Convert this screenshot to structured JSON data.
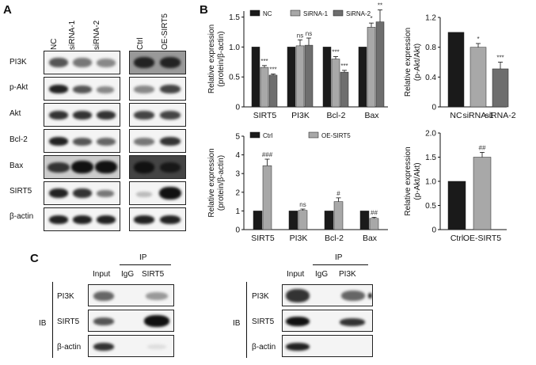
{
  "panelA": {
    "letter": "A",
    "left_lanes": [
      "NC",
      "siRNA-1",
      "siRNA-2"
    ],
    "right_lanes": [
      "Ctrl",
      "OE-SIRT5"
    ],
    "rows": [
      "PI3K",
      "p-Akt",
      "Akt",
      "Bcl-2",
      "Bax",
      "SIRT5",
      "β-actin"
    ]
  },
  "panelB": {
    "letter": "B",
    "chart_data": [
      {
        "type": "bar",
        "categories": [
          "SIRT5",
          "PI3K",
          "Bcl-2",
          "Bax"
        ],
        "series": [
          {
            "name": "NC",
            "values": [
              1.0,
              1.0,
              1.0,
              1.0
            ],
            "errors": [
              0,
              0,
              0,
              0
            ],
            "color": "#1a1a1a"
          },
          {
            "name": "SiRNA-1",
            "values": [
              0.66,
              1.02,
              0.8,
              1.33
            ],
            "errors": [
              0.03,
              0.1,
              0.04,
              0.07
            ],
            "color": "#a8a8a8"
          },
          {
            "name": "SiRNA-2",
            "values": [
              0.53,
              1.03,
              0.58,
              1.42
            ],
            "errors": [
              0.02,
              0.12,
              0.03,
              0.2
            ],
            "color": "#6e6e6e"
          }
        ],
        "annotations": [
          [
            "",
            "***",
            "***"
          ],
          [
            "",
            "ns",
            "ns"
          ],
          [
            "",
            "***",
            "***"
          ],
          [
            "",
            "*",
            "**"
          ]
        ],
        "ylabel": "Relative expression\n(protein/β-actin)",
        "ylim": [
          0,
          1.6
        ],
        "yticks": [
          "0",
          "0.5",
          "1.0",
          "1.5"
        ]
      },
      {
        "type": "bar",
        "categories": [
          "NC",
          "siRNA-1",
          "siRNA-2"
        ],
        "values": [
          1.0,
          0.8,
          0.51
        ],
        "errors": [
          0,
          0.05,
          0.09
        ],
        "colors": [
          "#1a1a1a",
          "#a8a8a8",
          "#6e6e6e"
        ],
        "annotations": [
          "",
          "*",
          "***"
        ],
        "ylabel": "Relative expression\n(p-Akt/Akt)",
        "ylim": [
          0,
          1.2
        ],
        "yticks": [
          "0",
          "0.4",
          "0.8",
          "1.2"
        ]
      },
      {
        "type": "bar",
        "categories": [
          "SIRT5",
          "PI3K",
          "Bcl-2",
          "Bax"
        ],
        "series": [
          {
            "name": "Ctrl",
            "values": [
              1.0,
              1.0,
              1.0,
              1.0
            ],
            "errors": [
              0,
              0,
              0,
              0
            ],
            "color": "#1a1a1a"
          },
          {
            "name": "OE-SIRT5",
            "values": [
              3.42,
              1.03,
              1.5,
              0.6
            ],
            "errors": [
              0.35,
              0.07,
              0.2,
              0.06
            ],
            "color": "#a8a8a8"
          }
        ],
        "annotations": [
          [
            "",
            "###"
          ],
          [
            "",
            "ns"
          ],
          [
            "",
            "#"
          ],
          [
            "",
            "##"
          ]
        ],
        "ylabel": "Relative expression\n(protein/β-actin)",
        "ylim": [
          0,
          5
        ],
        "yticks": [
          "0",
          "1",
          "2",
          "3",
          "4",
          "5"
        ]
      },
      {
        "type": "bar",
        "categories": [
          "Ctrl",
          "OE-SIRT5"
        ],
        "values": [
          1.0,
          1.5
        ],
        "errors": [
          0,
          0.1
        ],
        "colors": [
          "#1a1a1a",
          "#a8a8a8"
        ],
        "annotations": [
          "",
          "##"
        ],
        "ylabel": "Relative expression\n(p-Akt/Akt)",
        "ylim": [
          0,
          2.0
        ],
        "yticks": [
          "0",
          "0.5",
          "1.0",
          "1.5",
          "2.0"
        ]
      }
    ]
  },
  "panelC": {
    "letter": "C",
    "left": {
      "input": "Input",
      "ip": "IP",
      "lanes": [
        "IgG",
        "SIRT5"
      ],
      "ib": "IB",
      "rows": [
        "PI3K",
        "SIRT5",
        "β-actin"
      ]
    },
    "right": {
      "input": "Input",
      "ip": "IP",
      "lanes": [
        "IgG",
        "PI3K"
      ],
      "ib": "IB",
      "rows": [
        "PI3K",
        "SIRT5",
        "β-actin"
      ]
    }
  }
}
